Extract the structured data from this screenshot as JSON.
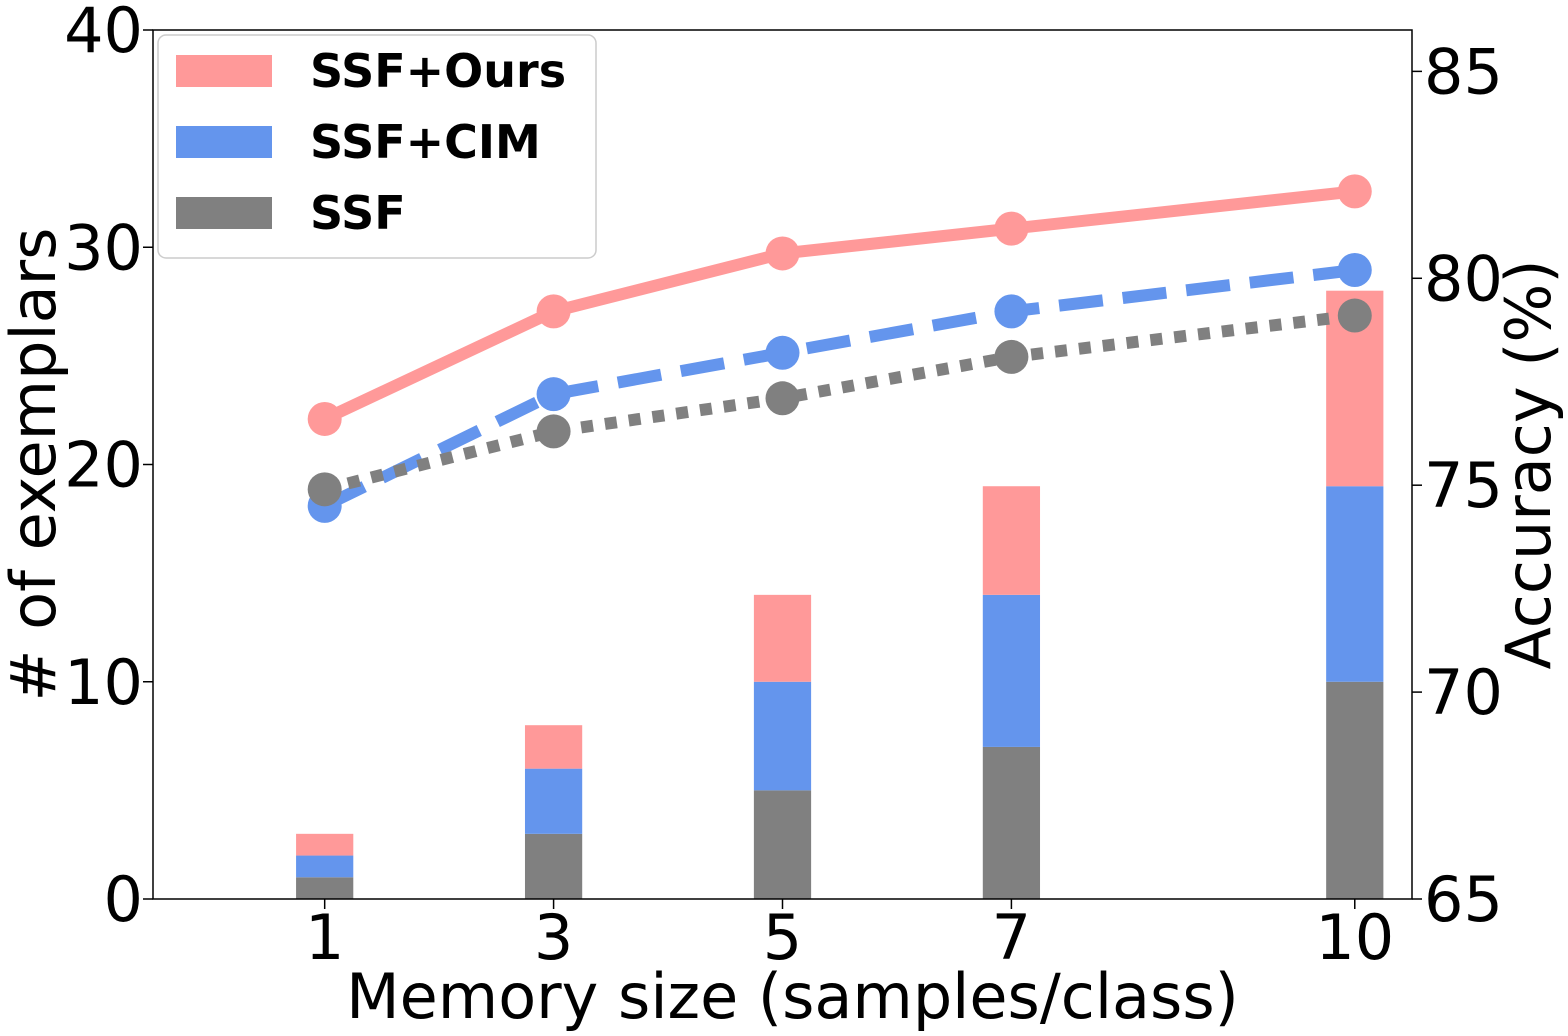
{
  "chart_data": {
    "type": "bar",
    "title": "",
    "xlabel": "Memory size (samples/class)",
    "ylabel_left": "# of exemplars",
    "ylabel_right": "Accuracy (%)",
    "x": [
      1,
      3,
      5,
      7,
      10
    ],
    "ylim_left": [
      0,
      40
    ],
    "yticks_left": [
      0,
      10,
      20,
      30,
      40
    ],
    "ylim_right": [
      65,
      86
    ],
    "yticks_right": [
      65,
      70,
      75,
      80,
      85
    ],
    "grid": false,
    "legend_position": "top-left",
    "legend": [
      {
        "name": "SSF+Ours",
        "color": "#ff9999"
      },
      {
        "name": "SSF+CIM",
        "color": "#6495ed"
      },
      {
        "name": "SSF",
        "color": "#808080"
      }
    ],
    "stacked_bars": [
      {
        "name": "SSF",
        "color": "#808080",
        "values": [
          1,
          3,
          5,
          7,
          10
        ]
      },
      {
        "name": "SSF+CIM",
        "color": "#6495ed",
        "values": [
          1,
          3,
          5,
          7,
          9
        ]
      },
      {
        "name": "SSF+Ours",
        "color": "#ff9999",
        "values": [
          1,
          2,
          4,
          5,
          9
        ]
      }
    ],
    "lines": [
      {
        "name": "SSF+Ours",
        "color": "#ff9999",
        "style": "solid",
        "values": [
          76.6,
          79.2,
          80.6,
          81.2,
          82.1
        ]
      },
      {
        "name": "SSF+CIM",
        "color": "#6495ed",
        "style": "dashed",
        "values": [
          74.5,
          77.2,
          78.2,
          79.2,
          80.2
        ]
      },
      {
        "name": "SSF",
        "color": "#808080",
        "style": "dotted",
        "values": [
          74.9,
          76.3,
          77.1,
          78.1,
          79.1
        ]
      }
    ]
  }
}
